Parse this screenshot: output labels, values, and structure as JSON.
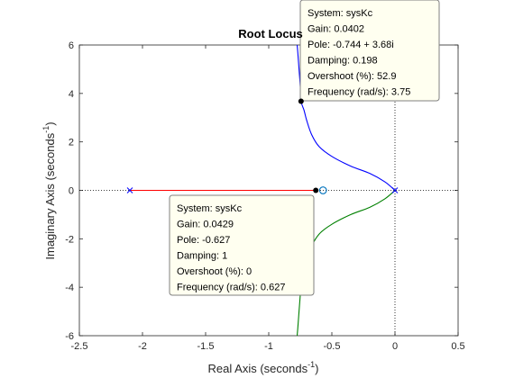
{
  "chart_data": {
    "type": "line",
    "title": "Root Locus",
    "xlabel": "Real Axis (seconds",
    "xlabel_sup": "-1",
    "xlabel_close": ")",
    "ylabel": "Imaginary Axis (seconds",
    "ylabel_sup": "-1",
    "ylabel_close": ")",
    "xlim": [
      -2.5,
      0.5
    ],
    "ylim": [
      -6,
      6
    ],
    "xticks": [
      -2.5,
      -2,
      -1.5,
      -1,
      -0.5,
      0,
      0.5
    ],
    "xtick_labels": [
      "-2.5",
      "-2",
      "-1.5",
      "-1",
      "-0.5",
      "0",
      "0.5"
    ],
    "yticks": [
      -6,
      -4,
      -2,
      0,
      2,
      4,
      6
    ],
    "ytick_labels": [
      "-6",
      "-4",
      "-2",
      "0",
      "2",
      "4",
      "6"
    ],
    "grid": false,
    "series": [
      {
        "color": "#0000ff",
        "points": [
          [
            0,
            0
          ],
          [
            -0.08,
            0.35
          ],
          [
            -0.2,
            0.7
          ],
          [
            -0.35,
            1.0
          ],
          [
            -0.5,
            1.4
          ],
          [
            -0.6,
            1.8
          ],
          [
            -0.66,
            2.3
          ],
          [
            -0.7,
            2.9
          ],
          [
            -0.72,
            3.3
          ],
          [
            -0.744,
            3.68
          ],
          [
            -0.75,
            4.3
          ],
          [
            -0.76,
            5.0
          ],
          [
            -0.77,
            5.7
          ],
          [
            -0.775,
            6.0
          ]
        ]
      },
      {
        "color": "#008000",
        "points": [
          [
            0,
            0
          ],
          [
            -0.08,
            -0.35
          ],
          [
            -0.2,
            -0.7
          ],
          [
            -0.35,
            -1.0
          ],
          [
            -0.5,
            -1.4
          ],
          [
            -0.6,
            -1.8
          ],
          [
            -0.66,
            -2.3
          ],
          [
            -0.7,
            -2.9
          ],
          [
            -0.72,
            -3.3
          ],
          [
            -0.744,
            -3.68
          ],
          [
            -0.75,
            -4.3
          ],
          [
            -0.76,
            -5.0
          ],
          [
            -0.77,
            -5.7
          ],
          [
            -0.775,
            -6.0
          ]
        ]
      },
      {
        "color": "#ff0000",
        "points": [
          [
            -2.1,
            0
          ],
          [
            -0.627,
            0
          ]
        ]
      }
    ],
    "poles": [
      [
        -2.1,
        0
      ],
      [
        0,
        0
      ]
    ],
    "zeros": [
      [
        -0.57,
        0
      ]
    ],
    "datatips": [
      {
        "point": [
          -0.744,
          3.68
        ],
        "lines": [
          "System: sysKc",
          "Gain: 0.0402",
          "Pole: -0.744 + 3.68i",
          "Damping: 0.198",
          "Overshoot (%): 52.9",
          "Frequency (rad/s): 3.75"
        ]
      },
      {
        "point": [
          -0.627,
          0
        ],
        "lines": [
          "System: sysKc",
          "Gain: 0.0429",
          "Pole: -0.627",
          "Damping: 1",
          "Overshoot (%): 0",
          "Frequency (rad/s): 0.627"
        ]
      }
    ],
    "colors": {
      "axes": "#262626",
      "reference_line": "#000000",
      "pole_marker": "#0000ff",
      "zero_marker": "#0072bd",
      "tip_background": "#fffff0",
      "tip_border": "#808080"
    }
  }
}
